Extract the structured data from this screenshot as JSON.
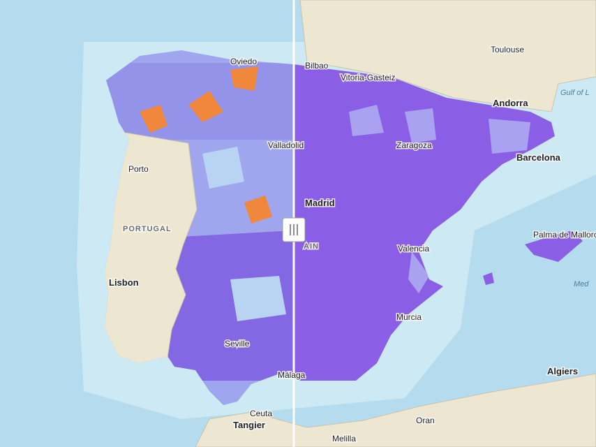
{
  "places": [
    "Oviedo",
    "Bilbao",
    "Vitoria-Gasteiz",
    "Toulouse",
    "Gulf of L",
    "Andorra",
    "Porto",
    "Valladolid",
    "Zaragoza",
    "Barcelona",
    "PORTUGAL",
    "Madrid",
    "AIN",
    "Palma de Mallorca",
    "Valencia",
    "Lisbon",
    "Med",
    "Murcia",
    "Seville",
    "Málaga",
    "Algiers",
    "Ceuta",
    "Tangier",
    "Oran",
    "Melilla"
  ]
}
